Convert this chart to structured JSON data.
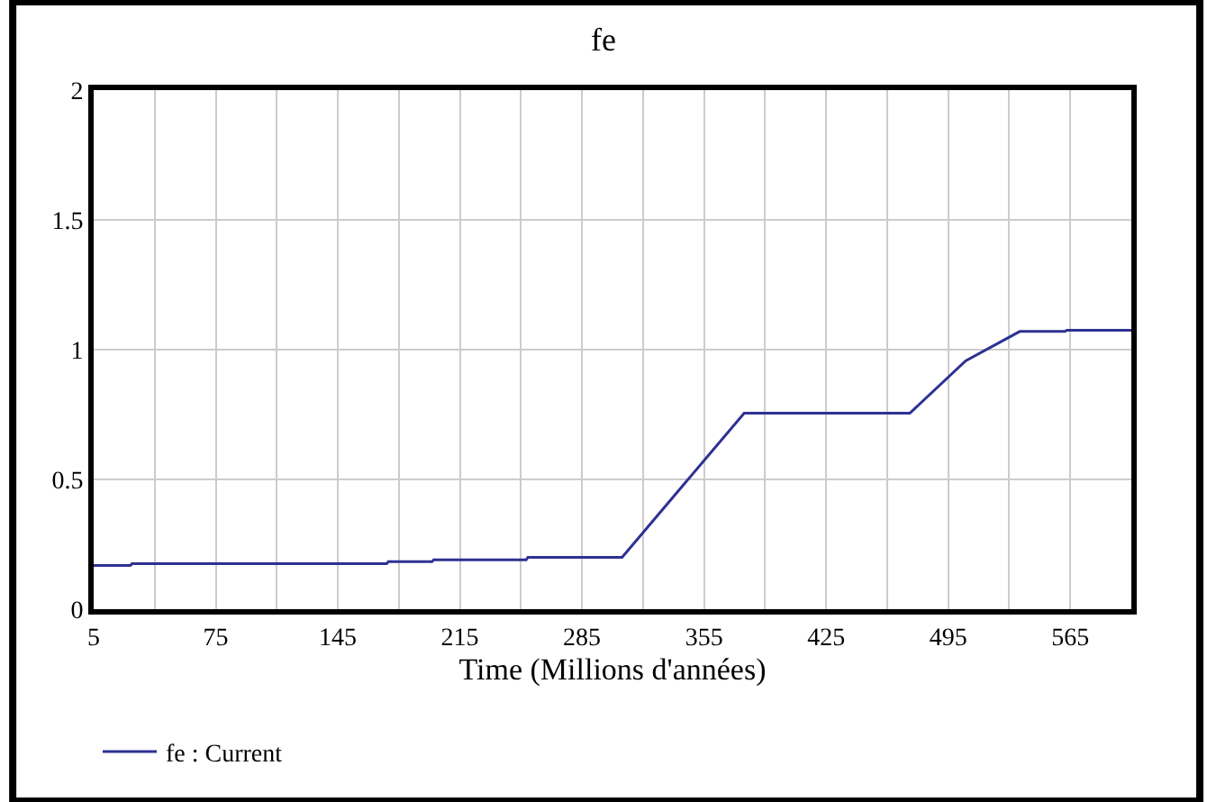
{
  "chart_data": {
    "type": "line",
    "title": "fe",
    "xlabel": "Time (Millions d'années)",
    "x": [
      5,
      26,
      27,
      173,
      174,
      199,
      200,
      253,
      254,
      308,
      378,
      473,
      505,
      536,
      562,
      563,
      600
    ],
    "series": [
      {
        "name": "fe : Current",
        "color": "#2e3192",
        "values": [
          0.168,
          0.168,
          0.175,
          0.175,
          0.183,
          0.183,
          0.19,
          0.19,
          0.2,
          0.2,
          0.755,
          0.755,
          0.957,
          1.07,
          1.07,
          1.075,
          1.075
        ]
      }
    ],
    "xlim": [
      5,
      600
    ],
    "xticks": [
      5,
      {
        "value": 40,
        "label": null
      },
      75,
      {
        "value": 110,
        "label": null
      },
      145,
      {
        "value": 180,
        "label": null
      },
      215,
      {
        "value": 250,
        "label": null
      },
      285,
      {
        "value": 320,
        "label": null
      },
      355,
      {
        "value": 390,
        "label": null
      },
      425,
      {
        "value": 460,
        "label": null
      },
      495,
      {
        "value": 530,
        "label": null
      },
      565
    ],
    "ylim": [
      0,
      2
    ],
    "yticks": [
      0,
      0.5,
      1,
      1.5,
      2
    ],
    "grid": true,
    "legend": "bottom",
    "marker": "none",
    "line_style": "solid"
  }
}
